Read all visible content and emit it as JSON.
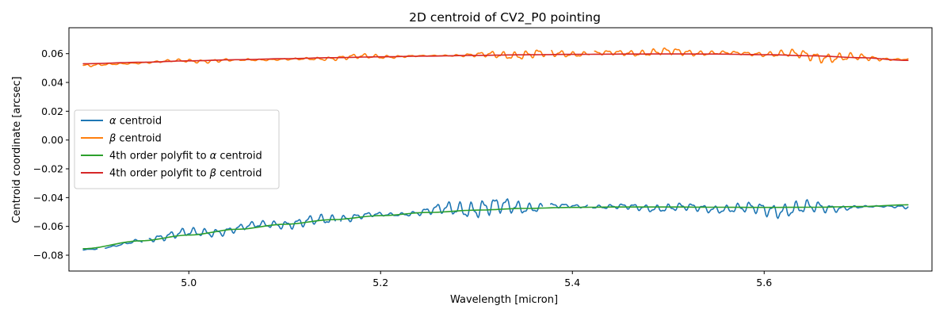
{
  "chart_data": {
    "type": "line",
    "title": "2D centroid of CV2_P0 pointing",
    "xlabel": "Wavelength [micron]",
    "ylabel": "Centroid coordinate [arcsec]",
    "xlim": [
      4.875,
      5.775
    ],
    "ylim": [
      -0.091,
      0.078
    ],
    "xticks": [
      5.0,
      5.2,
      5.4,
      5.6
    ],
    "xtick_labels": [
      "5.0",
      "5.2",
      "5.4",
      "5.6"
    ],
    "yticks": [
      -0.08,
      -0.06,
      -0.04,
      -0.02,
      0.0,
      0.02,
      0.04,
      0.06
    ],
    "ytick_labels": [
      "−0.08",
      "−0.06",
      "−0.04",
      "−0.02",
      "0.00",
      "0.02",
      "0.04",
      "0.06"
    ],
    "grid": false,
    "legend_position": "center-left",
    "series": [
      {
        "name": "α centroid",
        "legend_prefix": "α",
        "legend_suffix": " centroid",
        "color": "#1f77b4",
        "kind": "noisy",
        "trend": {
          "x": [
            4.89,
            5.0,
            5.1,
            5.2,
            5.3,
            5.4,
            5.5,
            5.6,
            5.75
          ],
          "y": [
            -0.076,
            -0.065,
            -0.058,
            -0.052,
            -0.047,
            -0.046,
            -0.047,
            -0.048,
            -0.046
          ]
        },
        "amplitude": {
          "x": [
            4.89,
            5.0,
            5.05,
            5.15,
            5.25,
            5.35,
            5.45,
            5.55,
            5.65,
            5.75
          ],
          "y": [
            0.004,
            0.007,
            0.008,
            0.01,
            0.012,
            0.011,
            0.007,
            0.01,
            0.011,
            0.008
          ]
        },
        "gaps": [
          [
            4.905,
            4.912
          ],
          [
            4.952,
            4.958
          ],
          [
            5.153,
            5.158
          ],
          [
            5.369,
            5.377
          ],
          [
            5.416,
            5.421
          ]
        ]
      },
      {
        "name": "β centroid",
        "legend_prefix": "β",
        "legend_suffix": " centroid",
        "color": "#ff7f0e",
        "kind": "noisy",
        "trend": {
          "x": [
            4.89,
            5.0,
            5.1,
            5.2,
            5.3,
            5.4,
            5.5,
            5.6,
            5.7,
            5.75
          ],
          "y": [
            0.052,
            0.055,
            0.056,
            0.058,
            0.059,
            0.06,
            0.061,
            0.06,
            0.057,
            0.056
          ]
        },
        "amplitude": {
          "x": [
            4.89,
            5.0,
            5.1,
            5.2,
            5.3,
            5.4,
            5.5,
            5.6,
            5.7,
            5.75
          ],
          "y": [
            0.003,
            0.004,
            0.002,
            0.004,
            0.006,
            0.006,
            0.008,
            0.007,
            0.006,
            0.004
          ]
        },
        "gaps": [
          [
            5.047,
            5.052
          ],
          [
            5.372,
            5.378
          ],
          [
            5.418,
            5.423
          ]
        ]
      },
      {
        "name": "4th order polyfit to α centroid",
        "legend_prefix": "4th order polyfit to ",
        "legend_sym": "α",
        "legend_suffix": " centroid",
        "color": "#2ca02c",
        "kind": "smooth",
        "x": [
          4.89,
          4.95,
          5.0,
          5.05,
          5.1,
          5.15,
          5.2,
          5.25,
          5.3,
          5.35,
          5.4,
          5.45,
          5.5,
          5.55,
          5.6,
          5.65,
          5.7,
          5.75
        ],
        "y": [
          -0.0755,
          -0.07,
          -0.066,
          -0.062,
          -0.0585,
          -0.0553,
          -0.0525,
          -0.0503,
          -0.0487,
          -0.0475,
          -0.0468,
          -0.0465,
          -0.0465,
          -0.0467,
          -0.0468,
          -0.0467,
          -0.0462,
          -0.045
        ]
      },
      {
        "name": "4th order polyfit to β centroid",
        "legend_prefix": "4th order polyfit to ",
        "legend_sym": "β",
        "legend_suffix": " centroid",
        "color": "#d62728",
        "kind": "smooth",
        "x": [
          4.89,
          4.95,
          5.0,
          5.05,
          5.1,
          5.15,
          5.2,
          5.25,
          5.3,
          5.35,
          5.4,
          5.45,
          5.5,
          5.55,
          5.6,
          5.65,
          5.7,
          5.75
        ],
        "y": [
          0.053,
          0.054,
          0.055,
          0.0558,
          0.0565,
          0.0572,
          0.0578,
          0.0583,
          0.0588,
          0.0592,
          0.0595,
          0.0597,
          0.0598,
          0.0597,
          0.0593,
          0.0585,
          0.0572,
          0.0553
        ]
      }
    ]
  }
}
